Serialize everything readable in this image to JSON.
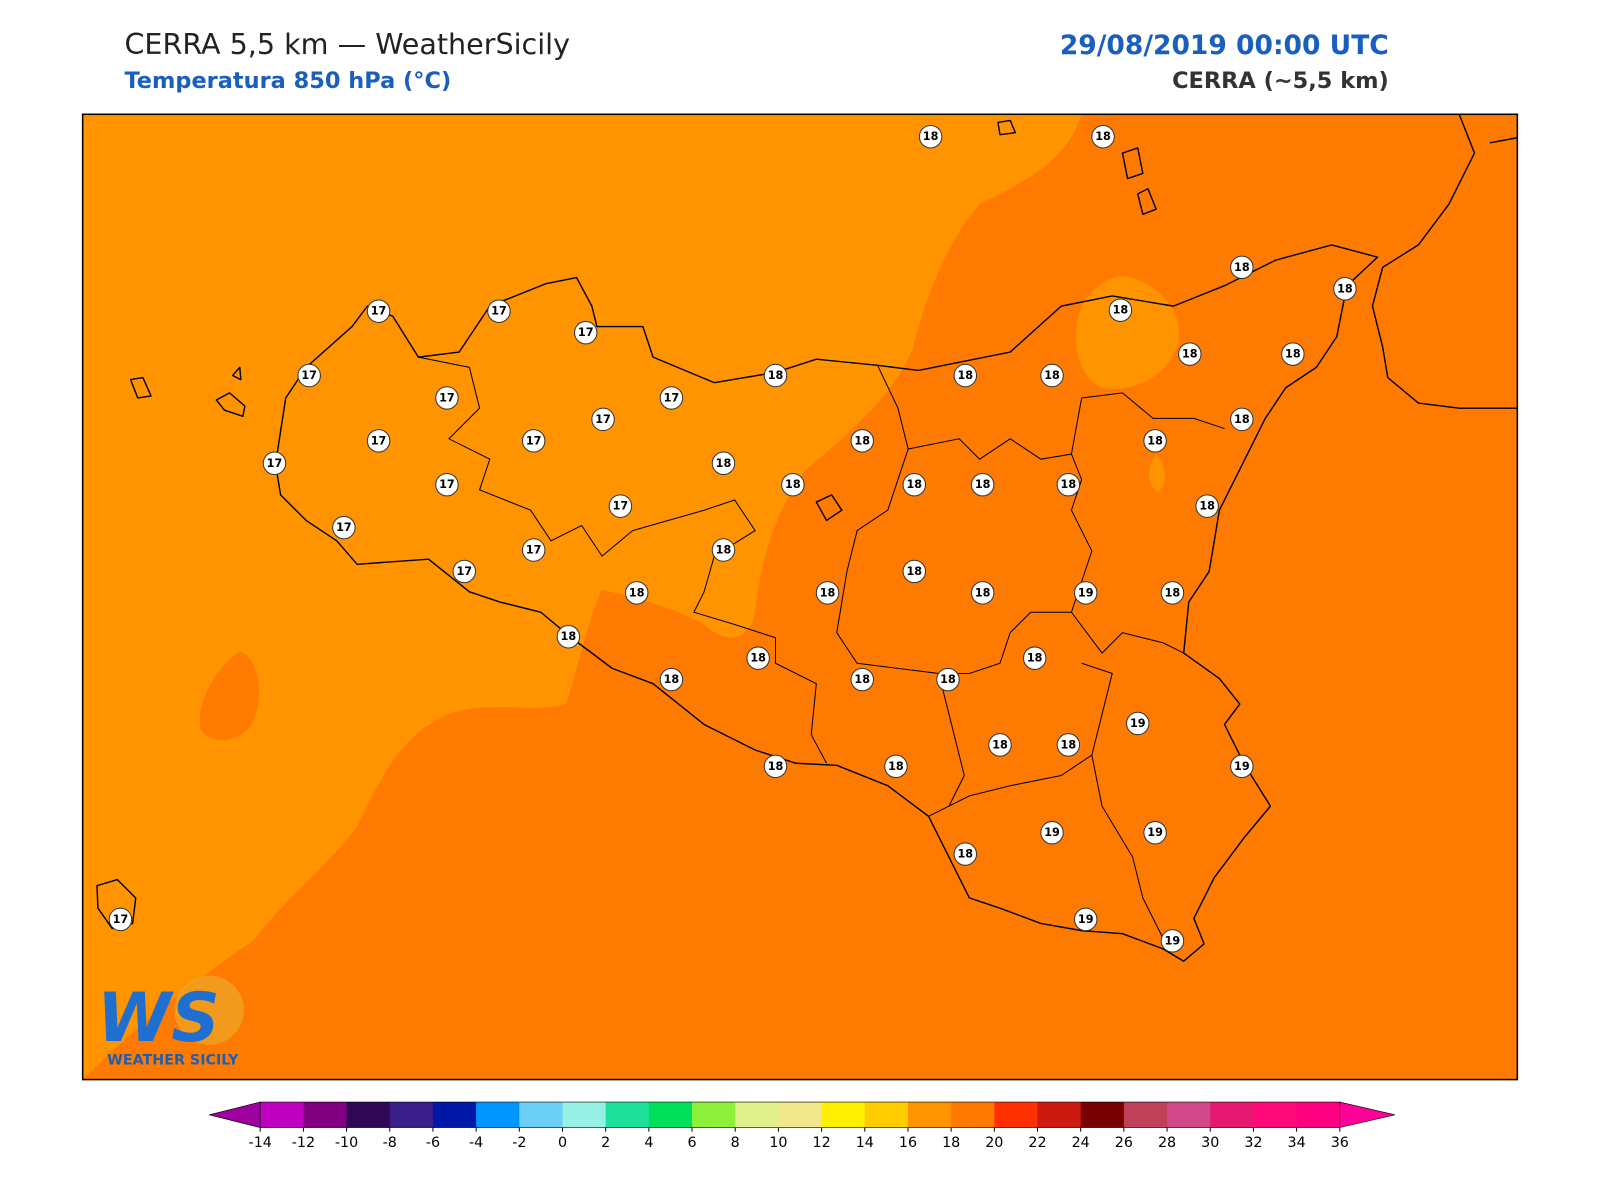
{
  "header": {
    "title": "CERRA 5,5 km — WeatherSicily",
    "subtitle": "Temperatura 850 hPa (°C)",
    "datetime": "29/08/2019 00:00 UTC",
    "model": "CERRA (~5,5 km)"
  },
  "logo": {
    "text": "WS",
    "tagline": "WEATHER SICILY"
  },
  "stations": [
    18,
    18,
    17,
    17,
    17,
    18,
    18,
    18,
    17,
    17,
    17,
    18,
    18,
    18,
    18,
    18,
    17,
    18,
    17,
    17,
    18,
    18,
    17,
    18,
    17,
    18,
    18,
    18,
    18,
    17,
    18,
    17,
    17,
    18,
    17,
    18,
    18,
    18,
    18,
    19,
    18,
    18,
    18,
    18,
    18,
    18,
    18,
    19,
    18,
    18,
    18,
    18,
    19,
    19,
    19,
    18,
    19,
    19,
    17
  ],
  "colorbar": {
    "ticks": [
      -14,
      -12,
      -10,
      -8,
      -6,
      -4,
      -2,
      0,
      2,
      4,
      6,
      8,
      10,
      12,
      14,
      16,
      18,
      20,
      22,
      24,
      26,
      28,
      30,
      32,
      34,
      36
    ],
    "colors": [
      "#c000c0",
      "#800080",
      "#2e0854",
      "#3a1f8a",
      "#0018a8",
      "#0096ff",
      "#6ccff6",
      "#96f0e6",
      "#1de19a",
      "#00e05a",
      "#8ef03a",
      "#e0f08a",
      "#f0e68c",
      "#fff000",
      "#ffcc00",
      "#ff9400",
      "#ff7800",
      "#ff3000",
      "#cc1a10",
      "#780000",
      "#c0405a",
      "#d04888",
      "#e61870",
      "#ff0a78",
      "#ff0080"
    ],
    "under": "#a000a0",
    "over": "#ff0099"
  },
  "map_colors": {
    "field_17": "#ff9400",
    "field_18": "#ff7a00"
  }
}
